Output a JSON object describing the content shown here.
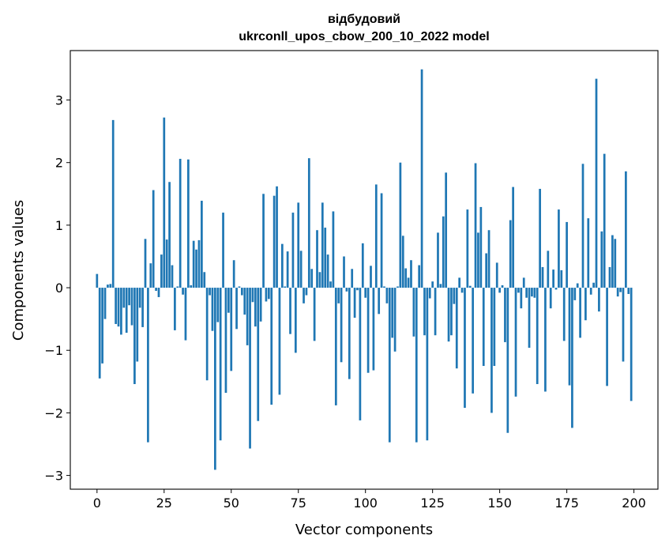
{
  "chart_data": {
    "type": "bar",
    "title_line1": "відбудовий",
    "title_line2": "ukrconll_upos_cbow_200_10_2022 model",
    "xlabel": "Vector components",
    "ylabel": "Components values",
    "xlim": [
      -9.95,
      208.95
    ],
    "ylim": [
      -3.22,
      3.79
    ],
    "xticks": [
      0,
      25,
      50,
      75,
      100,
      125,
      150,
      175,
      200
    ],
    "xtick_labels": [
      "0",
      "25",
      "50",
      "75",
      "100",
      "125",
      "150",
      "175",
      "200"
    ],
    "yticks": [
      -3,
      -2,
      -1,
      0,
      1,
      2,
      3
    ],
    "ytick_labels": [
      "−3",
      "−2",
      "−1",
      "0",
      "1",
      "2",
      "3"
    ],
    "grid": false,
    "bar_color": "#1f77b4",
    "values": [
      0.22,
      -1.45,
      -1.21,
      -0.5,
      0.05,
      0.06,
      2.68,
      -0.58,
      -0.62,
      -0.75,
      -0.32,
      -0.72,
      -0.28,
      -0.6,
      -1.54,
      -1.18,
      -0.32,
      -0.63,
      0.78,
      -2.47,
      0.39,
      1.56,
      -0.05,
      -0.15,
      0.53,
      2.72,
      0.77,
      1.69,
      0.36,
      -0.68,
      0.02,
      2.06,
      -0.11,
      -0.84,
      2.05,
      0.04,
      0.75,
      0.61,
      0.76,
      1.39,
      0.25,
      -1.48,
      -0.12,
      -0.69,
      -2.91,
      -0.55,
      -2.44,
      1.2,
      -1.68,
      -0.4,
      -1.33,
      0.44,
      -0.66,
      0.02,
      -0.12,
      -0.43,
      -0.92,
      -2.57,
      -0.23,
      -0.62,
      -2.13,
      -0.54,
      1.5,
      -0.22,
      -0.18,
      -1.87,
      1.47,
      1.62,
      -1.71,
      0.7,
      0.02,
      0.58,
      -0.74,
      1.2,
      -1.04,
      1.36,
      0.59,
      -0.25,
      -0.12,
      2.07,
      0.3,
      -0.85,
      0.92,
      0.25,
      1.36,
      0.96,
      0.53,
      0.1,
      1.22,
      -1.88,
      -0.25,
      -1.19,
      0.5,
      -0.06,
      -1.46,
      0.3,
      -0.48,
      -0.04,
      -2.12,
      0.71,
      -0.16,
      -1.36,
      0.35,
      -1.32,
      1.65,
      -0.42,
      1.51,
      0.02,
      -0.25,
      -2.47,
      -0.8,
      -1.02,
      0.02,
      2.0,
      0.83,
      0.31,
      0.16,
      0.44,
      -0.78,
      -2.47,
      0.36,
      3.49,
      -0.76,
      -2.44,
      -0.17,
      0.1,
      -0.76,
      0.88,
      0.06,
      1.14,
      1.84,
      -0.86,
      -0.76,
      -0.26,
      -1.29,
      0.16,
      -0.08,
      -1.92,
      1.25,
      0.03,
      -1.69,
      1.99,
      0.88,
      1.29,
      -1.25,
      0.55,
      0.92,
      -2.0,
      -1.25,
      0.4,
      -0.08,
      0.04,
      -0.87,
      -2.32,
      1.08,
      1.61,
      -1.74,
      -0.08,
      -0.33,
      0.16,
      -0.16,
      -0.96,
      -0.14,
      -0.16,
      -1.54,
      1.58,
      0.33,
      -1.66,
      0.59,
      -0.33,
      0.29,
      -0.03,
      1.25,
      0.28,
      -0.85,
      1.05,
      -1.56,
      -2.24,
      -0.2,
      0.07,
      -0.8,
      1.98,
      -0.52,
      1.11,
      -0.11,
      0.08,
      3.34,
      -0.38,
      0.9,
      2.14,
      -1.57,
      0.33,
      0.84,
      0.78,
      -0.14,
      -0.07,
      -1.18,
      1.86,
      -0.1,
      -1.81
    ]
  }
}
